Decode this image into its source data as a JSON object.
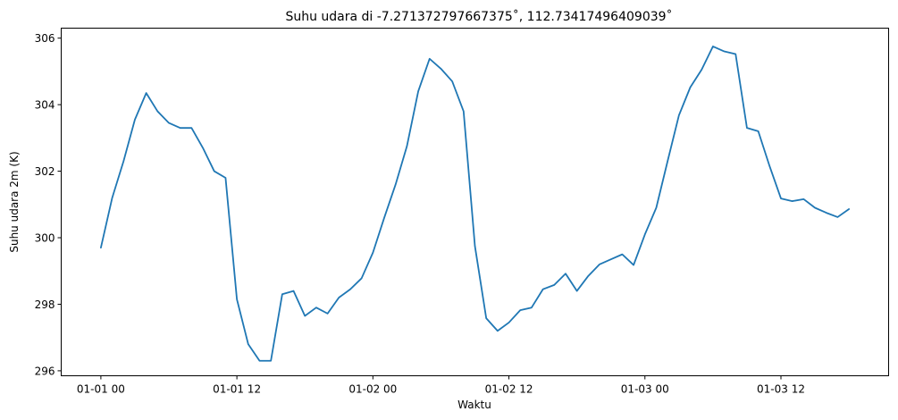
{
  "chart_data": {
    "type": "line",
    "title": "Suhu udara di -7.271372797667375$^\\circ$, 112.73417496409039$^\\circ$",
    "title_display": "Suhu udara di -7.271372797667375˚, 112.73417496409039˚",
    "xlabel": "Waktu",
    "ylabel": "Suhu udara 2m (K)",
    "x_start": "01-01 00",
    "x_step_hours": 1,
    "xlim_hours": [
      -3.5,
      69.5
    ],
    "ylim": [
      295.85,
      306.3
    ],
    "x_ticks": [
      {
        "hour": 0,
        "label": "01-01 00"
      },
      {
        "hour": 12,
        "label": "01-01 12"
      },
      {
        "hour": 24,
        "label": "01-02 00"
      },
      {
        "hour": 36,
        "label": "01-02 12"
      },
      {
        "hour": 48,
        "label": "01-03 00"
      },
      {
        "hour": 60,
        "label": "01-03 12"
      }
    ],
    "y_ticks": [
      {
        "value": 296,
        "label": "296"
      },
      {
        "value": 298,
        "label": "298"
      },
      {
        "value": 300,
        "label": "300"
      },
      {
        "value": 302,
        "label": "302"
      },
      {
        "value": 304,
        "label": "304"
      },
      {
        "value": 306,
        "label": "306"
      }
    ],
    "grid": false,
    "series": [
      {
        "color": "#1f77b4",
        "values": [
          299.7,
          301.2,
          302.3,
          303.55,
          304.35,
          303.8,
          303.45,
          303.3,
          303.3,
          302.7,
          302.0,
          301.8,
          298.15,
          296.8,
          296.3,
          296.3,
          298.3,
          298.4,
          297.65,
          297.9,
          297.72,
          298.2,
          298.45,
          298.78,
          299.55,
          300.6,
          301.6,
          302.75,
          304.4,
          305.38,
          305.08,
          304.7,
          303.8,
          299.75,
          297.58,
          297.2,
          297.45,
          297.82,
          297.9,
          298.45,
          298.58,
          298.92,
          298.4,
          298.85,
          299.2,
          299.35,
          299.5,
          299.18,
          300.1,
          300.9,
          302.3,
          303.68,
          304.52,
          305.05,
          305.75,
          305.6,
          305.52,
          303.3,
          303.2,
          302.15,
          301.18,
          301.1,
          301.16,
          300.9,
          300.75,
          300.62,
          300.86
        ]
      }
    ]
  }
}
